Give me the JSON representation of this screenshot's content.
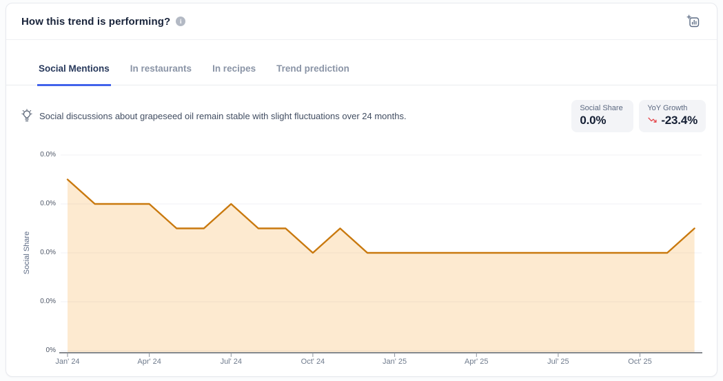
{
  "header": {
    "title": "How this trend is performing?",
    "info_icon": "info-circle",
    "add_chart_icon": "add-chart"
  },
  "tabs": [
    {
      "label": "Social Mentions",
      "active": true
    },
    {
      "label": "In restaurants",
      "active": false
    },
    {
      "label": "In recipes",
      "active": false
    },
    {
      "label": "Trend prediction",
      "active": false
    }
  ],
  "insight": {
    "icon": "lightbulb-icon",
    "text": "Social discussions about grapeseed oil remain stable with slight fluctuations over 24 months."
  },
  "stats": [
    {
      "label": "Social Share",
      "value": "0.0%"
    },
    {
      "label": "YoY Growth",
      "value": "-23.4%",
      "icon": "trending-down-icon",
      "icon_color": "#e5484d"
    }
  ],
  "chart_data": {
    "type": "area",
    "title": "",
    "xlabel": "",
    "ylabel": "Social Share",
    "legend": "none",
    "grid": "horizontal",
    "x_tick_labels": [
      "Jan' 24",
      "Apr' 24",
      "Jul' 24",
      "Oct' 24",
      "Jan' 25",
      "Apr' 25",
      "Jul' 25",
      "Oct' 25"
    ],
    "y_tick_labels_top_to_bottom": [
      "0.0%",
      "0.0%",
      "0.0%",
      "0.0%",
      "0%"
    ],
    "months": [
      "Jan' 24",
      "Feb' 24",
      "Mar' 24",
      "Apr' 24",
      "May' 24",
      "Jun' 24",
      "Jul' 24",
      "Aug' 24",
      "Sep' 24",
      "Oct' 24",
      "Nov' 24",
      "Dec' 24",
      "Jan' 25",
      "Feb' 25",
      "Mar' 25",
      "Apr' 25",
      "May' 25",
      "Jun' 25",
      "Jul' 25",
      "Aug' 25",
      "Sep' 25",
      "Oct' 25",
      "Nov' 25",
      "Dec' 25"
    ],
    "series": [
      {
        "name": "Social Share",
        "values_gridline_units": [
          3.5,
          3,
          3,
          3,
          2.5,
          2.5,
          3,
          2.5,
          2.5,
          2,
          2.5,
          2,
          2,
          2,
          2,
          2,
          2,
          2,
          2,
          2,
          2,
          2,
          2,
          2.5
        ]
      }
    ],
    "ylim_gridline_units": [
      0,
      4
    ],
    "line_color": "#C9790E",
    "fill_color_rgba": "rgba(245,166,60,0.24)",
    "gridline_color": "#f0f1f4",
    "axis_color": "#3b4149"
  }
}
